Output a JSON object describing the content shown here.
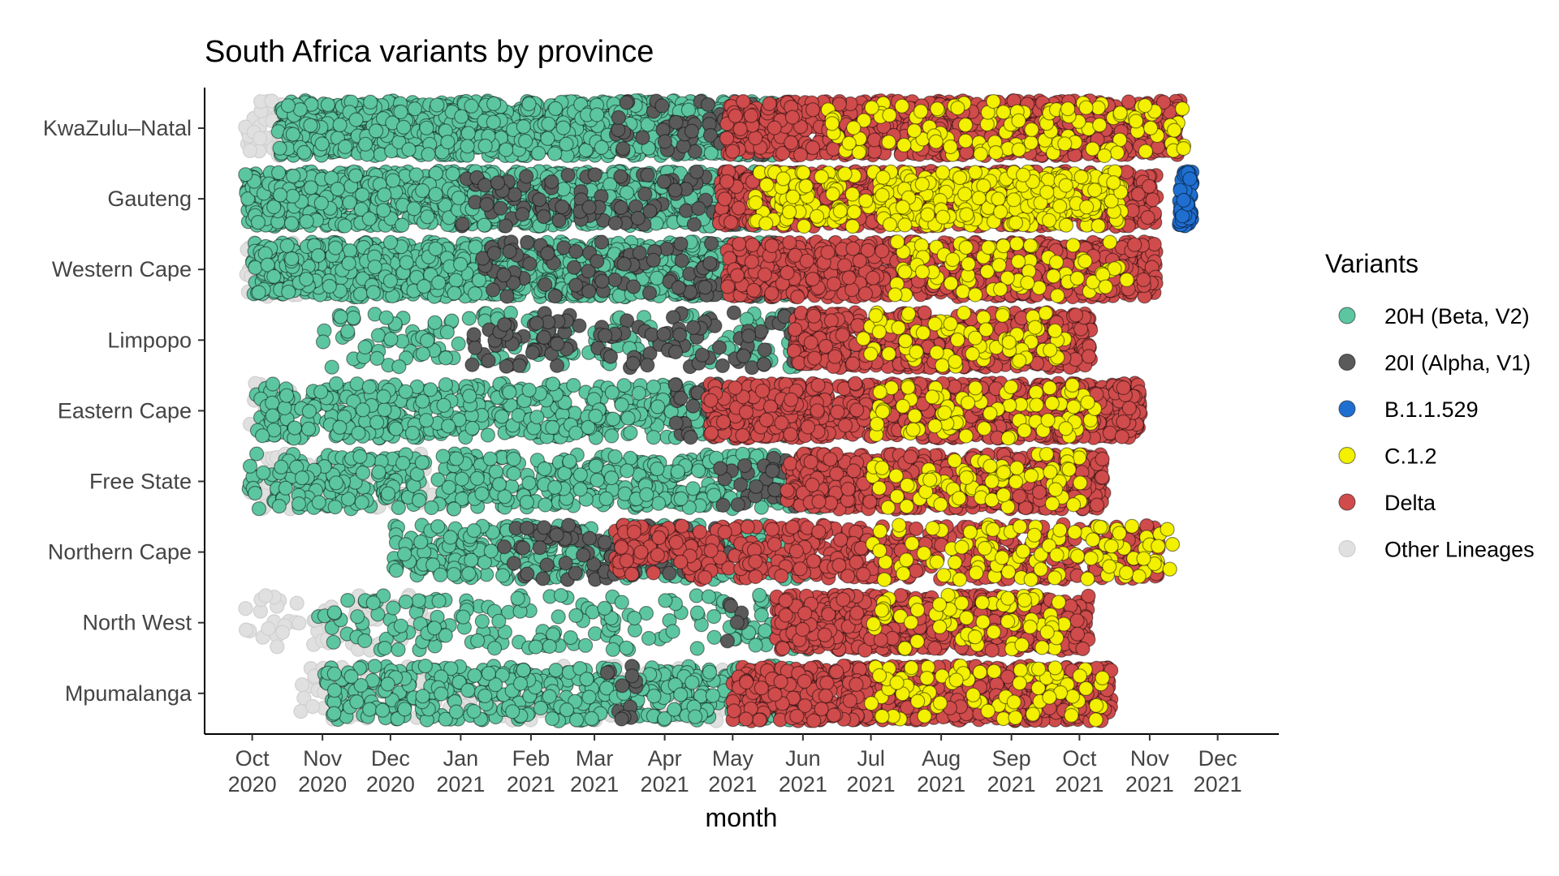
{
  "chart_data": {
    "type": "scatter",
    "title": "South Africa variants by province",
    "xlabel": "month",
    "ylabel": "",
    "x_range": [
      "2020-09-10",
      "2021-12-28"
    ],
    "x_ticks": [
      {
        "date": "2020-10-01",
        "month": "Oct",
        "year": "2020"
      },
      {
        "date": "2020-11-01",
        "month": "Nov",
        "year": "2020"
      },
      {
        "date": "2020-12-01",
        "month": "Dec",
        "year": "2020"
      },
      {
        "date": "2021-01-01",
        "month": "Jan",
        "year": "2021"
      },
      {
        "date": "2021-02-01",
        "month": "Feb",
        "year": "2021"
      },
      {
        "date": "2021-03-01",
        "month": "Mar",
        "year": "2021"
      },
      {
        "date": "2021-04-01",
        "month": "Apr",
        "year": "2021"
      },
      {
        "date": "2021-05-01",
        "month": "May",
        "year": "2021"
      },
      {
        "date": "2021-06-01",
        "month": "Jun",
        "year": "2021"
      },
      {
        "date": "2021-07-01",
        "month": "Jul",
        "year": "2021"
      },
      {
        "date": "2021-08-01",
        "month": "Aug",
        "year": "2021"
      },
      {
        "date": "2021-09-01",
        "month": "Sep",
        "year": "2021"
      },
      {
        "date": "2021-10-01",
        "month": "Oct",
        "year": "2021"
      },
      {
        "date": "2021-11-01",
        "month": "Nov",
        "year": "2021"
      },
      {
        "date": "2021-12-01",
        "month": "Dec",
        "year": "2021"
      }
    ],
    "provinces": [
      "KwaZulu–Natal",
      "Gauteng",
      "Western Cape",
      "Limpopo",
      "Eastern Cape",
      "Free State",
      "Northern Cape",
      "North West",
      "Mpumalanga"
    ],
    "legend": {
      "title": "Variants",
      "placement": "right",
      "entries": [
        {
          "name": "20H (Beta, V2)",
          "color": "#5cc6a0"
        },
        {
          "name": "20I (Alpha, V1)",
          "color": "#5a5a5a"
        },
        {
          "name": "B.1.1.529",
          "color": "#1f6fd1"
        },
        {
          "name": "C.1.2",
          "color": "#f3f000"
        },
        {
          "name": "Delta",
          "color": "#d04b4b"
        },
        {
          "name": "Other Lineages",
          "color": "#e0e0e0"
        }
      ]
    },
    "series": [
      {
        "province": "KwaZulu–Natal",
        "variant": "Other Lineages",
        "from": "2020-09-28",
        "to": "2020-10-20",
        "density": "medium"
      },
      {
        "province": "KwaZulu–Natal",
        "variant": "20H (Beta, V2)",
        "from": "2020-10-12",
        "to": "2021-05-20",
        "density": "high"
      },
      {
        "province": "KwaZulu–Natal",
        "variant": "20I (Alpha, V1)",
        "from": "2021-03-10",
        "to": "2021-05-15",
        "density": "low"
      },
      {
        "province": "KwaZulu–Natal",
        "variant": "Delta",
        "from": "2021-04-28",
        "to": "2021-11-15",
        "density": "high"
      },
      {
        "province": "KwaZulu–Natal",
        "variant": "C.1.2",
        "from": "2021-06-12",
        "to": "2021-11-18",
        "density": "low"
      },
      {
        "province": "Gauteng",
        "variant": "20H (Beta, V2)",
        "from": "2020-09-28",
        "to": "2021-05-15",
        "density": "high"
      },
      {
        "province": "Gauteng",
        "variant": "20I (Alpha, V1)",
        "from": "2021-01-01",
        "to": "2021-05-10",
        "density": "low"
      },
      {
        "province": "Gauteng",
        "variant": "Delta",
        "from": "2021-04-25",
        "to": "2021-11-04",
        "density": "high"
      },
      {
        "province": "Gauteng",
        "variant": "C.1.2",
        "from": "2021-05-10",
        "to": "2021-10-20",
        "density": "medium"
      },
      {
        "province": "Gauteng",
        "variant": "B.1.1.529",
        "from": "2021-11-14",
        "to": "2021-11-20",
        "density": "high"
      },
      {
        "province": "Western Cape",
        "variant": "Other Lineages",
        "from": "2020-09-28",
        "to": "2020-10-22",
        "density": "medium"
      },
      {
        "province": "Western Cape",
        "variant": "20H (Beta, V2)",
        "from": "2020-10-01",
        "to": "2021-05-28",
        "density": "high"
      },
      {
        "province": "Western Cape",
        "variant": "20I (Alpha, V1)",
        "from": "2021-01-10",
        "to": "2021-05-20",
        "density": "low"
      },
      {
        "province": "Western Cape",
        "variant": "Delta",
        "from": "2021-04-28",
        "to": "2021-11-04",
        "density": "high"
      },
      {
        "province": "Western Cape",
        "variant": "C.1.2",
        "from": "2021-07-10",
        "to": "2021-10-22",
        "density": "low"
      },
      {
        "province": "Limpopo",
        "variant": "20H (Beta, V2)",
        "from": "2020-11-01",
        "to": "2021-06-02",
        "density": "low"
      },
      {
        "province": "Limpopo",
        "variant": "20I (Alpha, V1)",
        "from": "2021-01-05",
        "to": "2021-05-30",
        "density": "low"
      },
      {
        "province": "Limpopo",
        "variant": "Delta",
        "from": "2021-05-28",
        "to": "2021-10-06",
        "density": "high"
      },
      {
        "province": "Limpopo",
        "variant": "C.1.2",
        "from": "2021-06-25",
        "to": "2021-09-25",
        "density": "low"
      },
      {
        "province": "Eastern Cape",
        "variant": "Other Lineages",
        "from": "2020-09-28",
        "to": "2020-10-20",
        "density": "low"
      },
      {
        "province": "Eastern Cape",
        "variant": "20H (Beta, V2)",
        "from": "2020-10-02",
        "to": "2021-05-25",
        "density": "medium"
      },
      {
        "province": "Eastern Cape",
        "variant": "20I (Alpha, V1)",
        "from": "2021-04-05",
        "to": "2021-05-15",
        "density": "low"
      },
      {
        "province": "Eastern Cape",
        "variant": "Delta",
        "from": "2021-04-20",
        "to": "2021-10-28",
        "density": "high"
      },
      {
        "province": "Eastern Cape",
        "variant": "C.1.2",
        "from": "2021-07-01",
        "to": "2021-10-08",
        "density": "low"
      },
      {
        "province": "Free State",
        "variant": "Other Lineages",
        "from": "2020-09-28",
        "to": "2020-12-20",
        "density": "low"
      },
      {
        "province": "Free State",
        "variant": "20H (Beta, V2)",
        "from": "2020-09-28",
        "to": "2021-06-10",
        "density": "medium"
      },
      {
        "province": "Free State",
        "variant": "20I (Alpha, V1)",
        "from": "2021-04-25",
        "to": "2021-06-05",
        "density": "low"
      },
      {
        "province": "Free State",
        "variant": "Delta",
        "from": "2021-05-25",
        "to": "2021-10-12",
        "density": "high"
      },
      {
        "province": "Free State",
        "variant": "C.1.2",
        "from": "2021-07-01",
        "to": "2021-10-05",
        "density": "low"
      },
      {
        "province": "Northern Cape",
        "variant": "20H (Beta, V2)",
        "from": "2020-12-01",
        "to": "2021-06-02",
        "density": "medium"
      },
      {
        "province": "Northern Cape",
        "variant": "20I (Alpha, V1)",
        "from": "2021-01-20",
        "to": "2021-04-30",
        "density": "low"
      },
      {
        "province": "Northern Cape",
        "variant": "Delta",
        "from": "2021-03-08",
        "to": "2021-11-05",
        "density": "medium"
      },
      {
        "province": "Northern Cape",
        "variant": "C.1.2",
        "from": "2021-07-01",
        "to": "2021-11-12",
        "density": "low"
      },
      {
        "province": "North West",
        "variant": "Other Lineages",
        "from": "2020-09-28",
        "to": "2020-12-20",
        "density": "low"
      },
      {
        "province": "North West",
        "variant": "20H (Beta, V2)",
        "from": "2020-10-25",
        "to": "2021-06-08",
        "density": "low"
      },
      {
        "province": "North West",
        "variant": "20I (Alpha, V1)",
        "from": "2021-04-28",
        "to": "2021-05-05",
        "density": "low"
      },
      {
        "province": "North West",
        "variant": "Delta",
        "from": "2021-05-20",
        "to": "2021-10-05",
        "density": "high"
      },
      {
        "province": "North West",
        "variant": "C.1.2",
        "from": "2021-07-01",
        "to": "2021-09-25",
        "density": "low"
      },
      {
        "province": "Mpumalanga",
        "variant": "Other Lineages",
        "from": "2020-10-20",
        "to": "2021-06-25",
        "density": "low"
      },
      {
        "province": "Mpumalanga",
        "variant": "20H (Beta, V2)",
        "from": "2020-11-01",
        "to": "2021-06-10",
        "density": "medium"
      },
      {
        "province": "Mpumalanga",
        "variant": "20I (Alpha, V1)",
        "from": "2021-03-05",
        "to": "2021-03-20",
        "density": "low"
      },
      {
        "province": "Mpumalanga",
        "variant": "Delta",
        "from": "2021-05-01",
        "to": "2021-10-15",
        "density": "high"
      },
      {
        "province": "Mpumalanga",
        "variant": "C.1.2",
        "from": "2021-07-01",
        "to": "2021-10-12",
        "density": "low"
      }
    ]
  }
}
